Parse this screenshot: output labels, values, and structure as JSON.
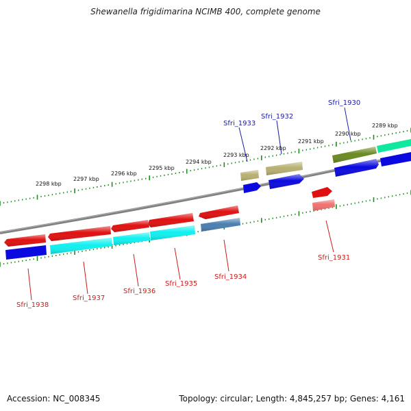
{
  "title": "Shewanella frigidimarina NCIMB 400, complete genome",
  "footer": {
    "accession": "Accession: NC_008345",
    "summary": "Topology: circular; Length: 4,845,257 bp; Genes: 4,161"
  },
  "kbp_labels": [
    "2289 kbp",
    "2290 kbp",
    "2291 kbp",
    "2292 kbp",
    "2293 kbp",
    "2294 kbp",
    "2295 kbp",
    "2296 kbp",
    "2297 kbp",
    "2298 kbp"
  ],
  "genes": [
    {
      "name": "Sfri_1930",
      "strand": "top",
      "color": "#1a1aa0"
    },
    {
      "name": "Sfri_1931",
      "strand": "bottom",
      "color": "#cc1a1a"
    },
    {
      "name": "Sfri_1932",
      "strand": "top",
      "color": "#1a1aa0"
    },
    {
      "name": "Sfri_1933",
      "strand": "top",
      "color": "#1a1aa0"
    },
    {
      "name": "Sfri_1934",
      "strand": "bottom",
      "color": "#cc1a1a"
    },
    {
      "name": "Sfri_1935",
      "strand": "bottom",
      "color": "#cc1a1a"
    },
    {
      "name": "Sfri_1936",
      "strand": "bottom",
      "color": "#cc1a1a"
    },
    {
      "name": "Sfri_1937",
      "strand": "bottom",
      "color": "#cc1a1a"
    },
    {
      "name": "Sfri_1938",
      "strand": "bottom",
      "color": "#cc1a1a"
    }
  ],
  "colors": {
    "backbone": "#808080",
    "tick": "#1f8a1f",
    "forward_cds": "#e01010",
    "reverse_cds": "#0a0ae0",
    "olive": "#6b8a22",
    "khaki": "#b8b070",
    "aqua": "#10f0f0",
    "mint": "#10e8a0",
    "steel": "#4a7fb0",
    "pink": "#f07070"
  }
}
